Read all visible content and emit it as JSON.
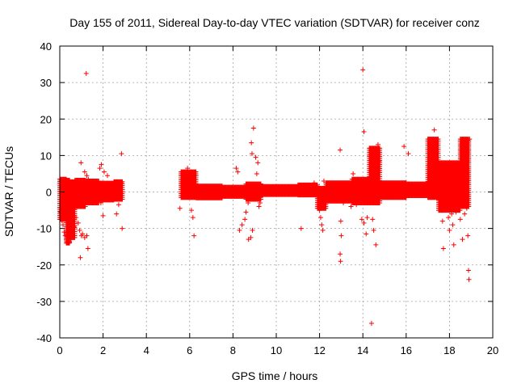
{
  "chart_data": {
    "type": "scatter",
    "title": "Day 155 of 2011, Sidereal Day-to-day VTEC variation (SDTVAR) for receiver conz",
    "xlabel": "GPS time / hours",
    "ylabel": "SDTVAR / TECUs",
    "xlim": [
      0,
      20
    ],
    "ylim": [
      -40,
      40
    ],
    "xticks": [
      0,
      2,
      4,
      6,
      8,
      10,
      12,
      14,
      16,
      18,
      20
    ],
    "yticks": [
      -40,
      -30,
      -20,
      -10,
      0,
      10,
      20,
      30,
      40
    ],
    "grid": true,
    "marker": "+",
    "color": "#ff0000",
    "series": [
      {
        "name": "SDTVAR",
        "bands": [
          {
            "x0": 0.0,
            "x1": 0.3,
            "lo": -7.5,
            "hi": 3.5
          },
          {
            "x0": 0.3,
            "x1": 0.45,
            "lo": -14,
            "hi": 3.2
          },
          {
            "x0": 0.45,
            "x1": 0.7,
            "lo": -12.5,
            "hi": 2.8
          },
          {
            "x0": 0.7,
            "x1": 1.2,
            "lo": -4.0,
            "hi": 3.2
          },
          {
            "x0": 1.2,
            "x1": 1.8,
            "lo": -3.0,
            "hi": 3.0
          },
          {
            "x0": 1.8,
            "x1": 2.5,
            "lo": -2.2,
            "hi": 2.4
          },
          {
            "x0": 2.5,
            "x1": 2.9,
            "lo": -2.0,
            "hi": 2.8
          },
          {
            "x0": 5.6,
            "x1": 6.3,
            "lo": -1.5,
            "hi": 5.5
          },
          {
            "x0": 6.3,
            "x1": 7.5,
            "lo": -1.6,
            "hi": 1.6
          },
          {
            "x0": 7.5,
            "x1": 8.6,
            "lo": -1.2,
            "hi": 1.3
          },
          {
            "x0": 8.6,
            "x1": 9.3,
            "lo": -2.0,
            "hi": 2.2
          },
          {
            "x0": 9.3,
            "x1": 11.0,
            "lo": -0.7,
            "hi": 1.5
          },
          {
            "x0": 11.0,
            "x1": 11.9,
            "lo": -0.8,
            "hi": 1.9
          },
          {
            "x0": 11.9,
            "x1": 12.3,
            "lo": -4.5,
            "hi": 1.0
          },
          {
            "x0": 12.3,
            "x1": 13.5,
            "lo": -2.5,
            "hi": 2.5
          },
          {
            "x0": 13.5,
            "x1": 14.3,
            "lo": -3.0,
            "hi": 3.5
          },
          {
            "x0": 14.3,
            "x1": 14.8,
            "lo": -3.0,
            "hi": 12.0
          },
          {
            "x0": 14.8,
            "x1": 16.0,
            "lo": -1.5,
            "hi": 2.5
          },
          {
            "x0": 16.0,
            "x1": 17.0,
            "lo": -1.0,
            "hi": 2.2
          },
          {
            "x0": 17.0,
            "x1": 17.5,
            "lo": -1.5,
            "hi": 14.5
          },
          {
            "x0": 17.5,
            "x1": 18.5,
            "lo": -5.0,
            "hi": 8.0
          },
          {
            "x0": 18.5,
            "x1": 18.9,
            "lo": -4.0,
            "hi": 14.5
          }
        ],
        "outliers": [
          [
            0.03,
            -7.0
          ],
          [
            0.05,
            -5.5
          ],
          [
            0.1,
            -7.8
          ],
          [
            0.15,
            -9.0
          ],
          [
            0.2,
            -11.0
          ],
          [
            0.25,
            -12.0
          ],
          [
            0.3,
            -13.0
          ],
          [
            0.35,
            -13.8
          ],
          [
            0.4,
            -14.0
          ],
          [
            0.45,
            -13.7
          ],
          [
            0.5,
            -13.0
          ],
          [
            0.55,
            -12.0
          ],
          [
            0.65,
            -9.5
          ],
          [
            0.75,
            -7.0
          ],
          [
            0.85,
            -8.5
          ],
          [
            0.92,
            -10.5
          ],
          [
            1.0,
            -12.0
          ],
          [
            1.05,
            -11.5
          ],
          [
            1.15,
            -12.5
          ],
          [
            1.25,
            -12.0
          ],
          [
            1.22,
            32.5
          ],
          [
            0.98,
            8.0
          ],
          [
            1.15,
            5.5
          ],
          [
            1.25,
            4.5
          ],
          [
            1.32,
            3.5
          ],
          [
            1.3,
            -15.5
          ],
          [
            0.95,
            -18.0
          ],
          [
            1.85,
            6.5
          ],
          [
            1.92,
            7.5
          ],
          [
            2.05,
            5.5
          ],
          [
            2.2,
            4.5
          ],
          [
            1.9,
            -3.0
          ],
          [
            2.0,
            -6.5
          ],
          [
            2.62,
            -6.0
          ],
          [
            2.72,
            -3.5
          ],
          [
            2.85,
            10.5
          ],
          [
            2.88,
            -10.0
          ],
          [
            2.82,
            2.5
          ],
          [
            5.55,
            -4.5
          ],
          [
            5.7,
            5.0
          ],
          [
            5.9,
            6.5
          ],
          [
            6.05,
            4.0
          ],
          [
            6.08,
            -5.0
          ],
          [
            6.2,
            -12.0
          ],
          [
            6.15,
            -7.0
          ],
          [
            8.15,
            6.5
          ],
          [
            8.22,
            5.5
          ],
          [
            8.3,
            -10.5
          ],
          [
            8.42,
            -9.0
          ],
          [
            8.55,
            -7.5
          ],
          [
            8.6,
            -5.5
          ],
          [
            8.72,
            -13.0
          ],
          [
            8.82,
            -12.5
          ],
          [
            8.7,
            -3.0
          ],
          [
            8.9,
            -10.5
          ],
          [
            8.85,
            13.5
          ],
          [
            8.88,
            10.5
          ],
          [
            8.95,
            17.5
          ],
          [
            9.05,
            9.5
          ],
          [
            9.1,
            5.0
          ],
          [
            9.15,
            8.0
          ],
          [
            9.2,
            -4.0
          ],
          [
            9.25,
            -3.0
          ],
          [
            11.15,
            -10.0
          ],
          [
            11.75,
            2.5
          ],
          [
            12.0,
            -5.0
          ],
          [
            12.05,
            -7.0
          ],
          [
            12.1,
            -9.0
          ],
          [
            12.15,
            -10.5
          ],
          [
            12.2,
            3.0
          ],
          [
            12.95,
            11.5
          ],
          [
            12.98,
            -8.0
          ],
          [
            13.0,
            -12.0
          ],
          [
            12.95,
            -17.0
          ],
          [
            12.97,
            -19.0
          ],
          [
            13.1,
            -3.0
          ],
          [
            13.45,
            -4.0
          ],
          [
            13.55,
            5.0
          ],
          [
            13.7,
            -3.5
          ],
          [
            14.0,
            33.5
          ],
          [
            14.05,
            16.5
          ],
          [
            13.95,
            -7.5
          ],
          [
            14.05,
            -8.5
          ],
          [
            14.15,
            -11.5
          ],
          [
            14.2,
            -7.0
          ],
          [
            14.45,
            -7.5
          ],
          [
            14.5,
            -10.5
          ],
          [
            14.6,
            -14.5
          ],
          [
            14.7,
            13.0
          ],
          [
            14.75,
            8.5
          ],
          [
            14.4,
            -36.0
          ],
          [
            15.9,
            12.5
          ],
          [
            16.1,
            10.5
          ],
          [
            17.2,
            13.5
          ],
          [
            17.3,
            17.0
          ],
          [
            17.4,
            11.0
          ],
          [
            17.55,
            2.0
          ],
          [
            17.6,
            1.5
          ],
          [
            17.65,
            -5.0
          ],
          [
            17.68,
            -8.0
          ],
          [
            17.72,
            -15.5
          ],
          [
            17.85,
            2.0
          ],
          [
            17.9,
            6.0
          ],
          [
            17.95,
            -7.0
          ],
          [
            18.0,
            -10.5
          ],
          [
            18.1,
            -6.0
          ],
          [
            18.15,
            -9.0
          ],
          [
            18.2,
            -14.5
          ],
          [
            18.3,
            -5.5
          ],
          [
            18.5,
            -7.5
          ],
          [
            18.6,
            -13.0
          ],
          [
            18.7,
            -6.0
          ],
          [
            18.85,
            -12.0
          ],
          [
            18.88,
            -21.5
          ],
          [
            18.9,
            -24.0
          ],
          [
            18.8,
            -4.5
          ],
          [
            18.3,
            4.0
          ],
          [
            18.5,
            8.5
          ],
          [
            18.7,
            12.0
          ],
          [
            18.85,
            13.5
          ],
          [
            18.93,
            14.5
          ]
        ]
      }
    ]
  }
}
